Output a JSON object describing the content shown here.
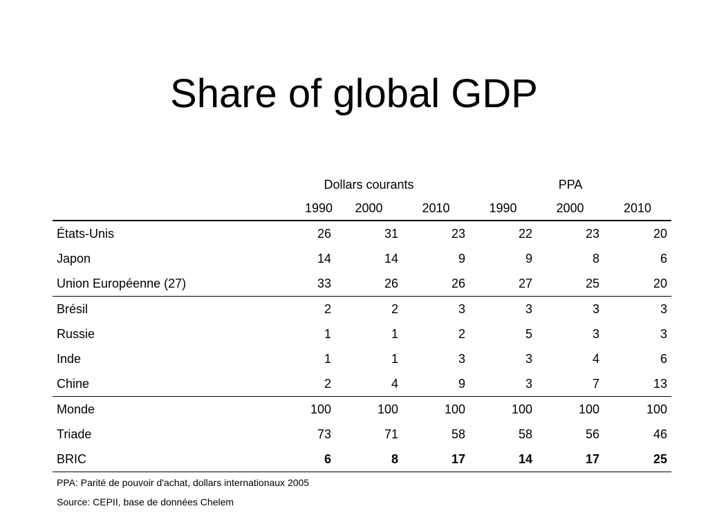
{
  "title": "Share of global GDP",
  "header": {
    "groups": [
      "Dollars courants",
      "PPA"
    ],
    "years": [
      "1990",
      "2000",
      "2010",
      "1990",
      "2000",
      "2010"
    ]
  },
  "rows": [
    {
      "label": "États-Unis",
      "values": [
        "26",
        "31",
        "23",
        "22",
        "23",
        "20"
      ],
      "group_end": false,
      "bold": false
    },
    {
      "label": "Japon",
      "values": [
        "14",
        "14",
        "9",
        "9",
        "8",
        "6"
      ],
      "group_end": false,
      "bold": false
    },
    {
      "label": "Union Européenne (27)",
      "values": [
        "33",
        "26",
        "26",
        "27",
        "25",
        "20"
      ],
      "group_end": true,
      "bold": false
    },
    {
      "label": "Brésil",
      "values": [
        "2",
        "2",
        "3",
        "3",
        "3",
        "3"
      ],
      "group_end": false,
      "bold": false
    },
    {
      "label": "Russie",
      "values": [
        "1",
        "1",
        "2",
        "5",
        "3",
        "3"
      ],
      "group_end": false,
      "bold": false
    },
    {
      "label": "Inde",
      "values": [
        "1",
        "1",
        "3",
        "3",
        "4",
        "6"
      ],
      "group_end": false,
      "bold": false
    },
    {
      "label": "Chine",
      "values": [
        "2",
        "4",
        "9",
        "3",
        "7",
        "13"
      ],
      "group_end": true,
      "bold": false
    },
    {
      "label": "Monde",
      "values": [
        "100",
        "100",
        "100",
        "100",
        "100",
        "100"
      ],
      "group_end": false,
      "bold": false
    },
    {
      "label": "Triade",
      "values": [
        "73",
        "71",
        "58",
        "58",
        "56",
        "46"
      ],
      "group_end": false,
      "bold": false
    },
    {
      "label": "BRIC",
      "values": [
        "6",
        "8",
        "17",
        "14",
        "17",
        "25"
      ],
      "group_end": true,
      "bold": true
    }
  ],
  "notes": [
    "PPA: Parité de pouvoir d'achat, dollars internationaux 2005",
    "Source: CEPII, base de données Chelem"
  ]
}
